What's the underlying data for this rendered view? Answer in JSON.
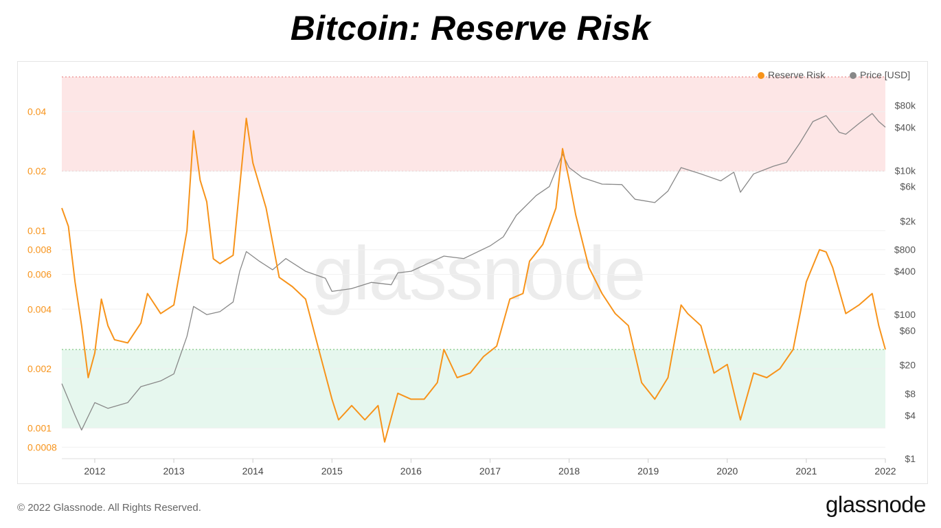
{
  "header": {
    "title": "Bitcoin: Reserve Risk"
  },
  "footer": {
    "copyright": "© 2022 Glassnode. All Rights Reserved.",
    "brand": "glassnode"
  },
  "watermark": "glassnode",
  "colors": {
    "reserve_risk": "#f7931a",
    "price": "#888888",
    "high_zone": "#fde6e6",
    "low_zone": "#e6f7ee"
  },
  "chart_data": {
    "type": "line",
    "title": "Bitcoin: Reserve Risk",
    "legend_position": "top-right",
    "x_ticks": [
      "2012",
      "2013",
      "2014",
      "2015",
      "2016",
      "2017",
      "2018",
      "2019",
      "2020",
      "2021",
      "2022"
    ],
    "x_range": [
      "2011-08",
      "2022-01"
    ],
    "left_axis": {
      "scale": "log",
      "range": [
        0.0007,
        0.06
      ],
      "ticks": [
        "0.04",
        "0.02",
        "0.01",
        "0.008",
        "0.006",
        "0.004",
        "0.002",
        "0.001",
        "0.0008"
      ]
    },
    "right_axis": {
      "scale": "log",
      "range": [
        1,
        200000
      ],
      "ticks": [
        "$80k",
        "$40k",
        "$10k",
        "$6k",
        "$2k",
        "$800",
        "$400",
        "$100",
        "$60",
        "$20",
        "$8",
        "$4",
        "$1"
      ]
    },
    "zones": [
      {
        "name": "high",
        "from": 0.02,
        "to": 0.06
      },
      {
        "name": "low",
        "from": 0.001,
        "to": 0.0025
      }
    ],
    "series": [
      {
        "name": "Reserve Risk",
        "axis": "left",
        "points": [
          [
            "2011-08",
            0.013
          ],
          [
            "2011-09",
            0.0105
          ],
          [
            "2011-10",
            0.0055
          ],
          [
            "2011-11",
            0.0033
          ],
          [
            "2011-12",
            0.0018
          ],
          [
            "2012-01",
            0.0024
          ],
          [
            "2012-02",
            0.0045
          ],
          [
            "2012-03",
            0.0033
          ],
          [
            "2012-04",
            0.0028
          ],
          [
            "2012-06",
            0.0027
          ],
          [
            "2012-08",
            0.0034
          ],
          [
            "2012-09",
            0.0048
          ],
          [
            "2012-11",
            0.0038
          ],
          [
            "2013-01",
            0.0042
          ],
          [
            "2013-03",
            0.01
          ],
          [
            "2013-04",
            0.032
          ],
          [
            "2013-05",
            0.018
          ],
          [
            "2013-06",
            0.014
          ],
          [
            "2013-07",
            0.0072
          ],
          [
            "2013-08",
            0.0068
          ],
          [
            "2013-10",
            0.0075
          ],
          [
            "2013-12",
            0.037
          ],
          [
            "2014-01",
            0.022
          ],
          [
            "2014-03",
            0.013
          ],
          [
            "2014-05",
            0.0058
          ],
          [
            "2014-07",
            0.0052
          ],
          [
            "2014-09",
            0.0045
          ],
          [
            "2014-11",
            0.0025
          ],
          [
            "2015-01",
            0.0014
          ],
          [
            "2015-02",
            0.0011
          ],
          [
            "2015-04",
            0.0013
          ],
          [
            "2015-06",
            0.0011
          ],
          [
            "2015-08",
            0.0013
          ],
          [
            "2015-09",
            0.00085
          ],
          [
            "2015-11",
            0.0015
          ],
          [
            "2016-01",
            0.0014
          ],
          [
            "2016-03",
            0.0014
          ],
          [
            "2016-05",
            0.0017
          ],
          [
            "2016-06",
            0.0025
          ],
          [
            "2016-08",
            0.0018
          ],
          [
            "2016-10",
            0.0019
          ],
          [
            "2016-12",
            0.0023
          ],
          [
            "2017-02",
            0.0026
          ],
          [
            "2017-04",
            0.0045
          ],
          [
            "2017-06",
            0.0048
          ],
          [
            "2017-07",
            0.007
          ],
          [
            "2017-09",
            0.0085
          ],
          [
            "2017-11",
            0.013
          ],
          [
            "2017-12",
            0.026
          ],
          [
            "2018-01",
            0.018
          ],
          [
            "2018-02",
            0.012
          ],
          [
            "2018-04",
            0.0065
          ],
          [
            "2018-06",
            0.0048
          ],
          [
            "2018-08",
            0.0038
          ],
          [
            "2018-10",
            0.0033
          ],
          [
            "2018-12",
            0.0017
          ],
          [
            "2019-02",
            0.0014
          ],
          [
            "2019-04",
            0.0018
          ],
          [
            "2019-06",
            0.0042
          ],
          [
            "2019-07",
            0.0038
          ],
          [
            "2019-09",
            0.0033
          ],
          [
            "2019-11",
            0.0019
          ],
          [
            "2020-01",
            0.0021
          ],
          [
            "2020-03",
            0.0011
          ],
          [
            "2020-05",
            0.0019
          ],
          [
            "2020-07",
            0.0018
          ],
          [
            "2020-09",
            0.002
          ],
          [
            "2020-11",
            0.0025
          ],
          [
            "2021-01",
            0.0055
          ],
          [
            "2021-03",
            0.008
          ],
          [
            "2021-04",
            0.0078
          ],
          [
            "2021-05",
            0.0065
          ],
          [
            "2021-07",
            0.0038
          ],
          [
            "2021-09",
            0.0042
          ],
          [
            "2021-11",
            0.0048
          ],
          [
            "2021-12",
            0.0033
          ],
          [
            "2022-01",
            0.0025
          ]
        ]
      },
      {
        "name": "Price [USD]",
        "axis": "right",
        "points": [
          [
            "2011-08",
            11
          ],
          [
            "2011-10",
            4
          ],
          [
            "2011-11",
            2.5
          ],
          [
            "2012-01",
            6
          ],
          [
            "2012-03",
            5
          ],
          [
            "2012-06",
            6
          ],
          [
            "2012-08",
            10
          ],
          [
            "2012-11",
            12
          ],
          [
            "2013-01",
            15
          ],
          [
            "2013-03",
            50
          ],
          [
            "2013-04",
            130
          ],
          [
            "2013-06",
            100
          ],
          [
            "2013-08",
            110
          ],
          [
            "2013-10",
            150
          ],
          [
            "2013-11",
            400
          ],
          [
            "2013-12",
            750
          ],
          [
            "2014-02",
            550
          ],
          [
            "2014-04",
            420
          ],
          [
            "2014-06",
            600
          ],
          [
            "2014-09",
            400
          ],
          [
            "2014-12",
            320
          ],
          [
            "2015-01",
            210
          ],
          [
            "2015-04",
            230
          ],
          [
            "2015-07",
            280
          ],
          [
            "2015-10",
            260
          ],
          [
            "2015-11",
            380
          ],
          [
            "2016-01",
            400
          ],
          [
            "2016-06",
            650
          ],
          [
            "2016-09",
            600
          ],
          [
            "2017-01",
            900
          ],
          [
            "2017-03",
            1200
          ],
          [
            "2017-05",
            2400
          ],
          [
            "2017-08",
            4500
          ],
          [
            "2017-10",
            6000
          ],
          [
            "2017-12",
            17000
          ],
          [
            "2018-01",
            11000
          ],
          [
            "2018-03",
            8000
          ],
          [
            "2018-06",
            6500
          ],
          [
            "2018-09",
            6400
          ],
          [
            "2018-11",
            4000
          ],
          [
            "2019-02",
            3600
          ],
          [
            "2019-04",
            5200
          ],
          [
            "2019-06",
            11000
          ],
          [
            "2019-09",
            9000
          ],
          [
            "2019-12",
            7200
          ],
          [
            "2020-02",
            9500
          ],
          [
            "2020-03",
            5000
          ],
          [
            "2020-05",
            9000
          ],
          [
            "2020-08",
            11500
          ],
          [
            "2020-10",
            13000
          ],
          [
            "2020-12",
            24000
          ],
          [
            "2021-02",
            48000
          ],
          [
            "2021-04",
            58000
          ],
          [
            "2021-06",
            34000
          ],
          [
            "2021-07",
            32000
          ],
          [
            "2021-09",
            45000
          ],
          [
            "2021-11",
            62000
          ],
          [
            "2021-12",
            48000
          ],
          [
            "2022-01",
            40000
          ]
        ]
      }
    ]
  }
}
